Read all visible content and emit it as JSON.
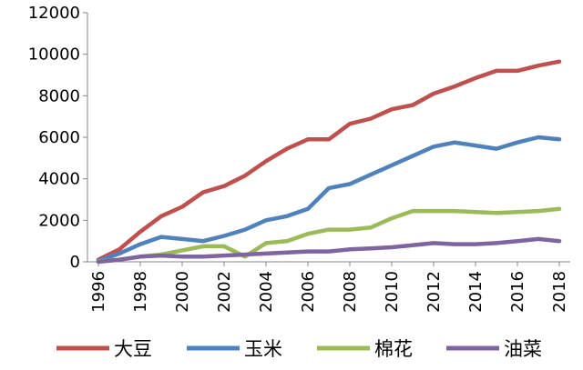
{
  "chart_data": {
    "type": "line",
    "title": "",
    "xlabel": "",
    "ylabel": "",
    "ylim": [
      0,
      12000
    ],
    "yticks": [
      0,
      2000,
      4000,
      6000,
      8000,
      10000,
      12000
    ],
    "xlim": [
      1996,
      2018
    ],
    "xticks": [
      1996,
      1998,
      2000,
      2002,
      2004,
      2006,
      2008,
      2010,
      2012,
      2014,
      2016,
      2018
    ],
    "grid": false,
    "legend_position": "bottom",
    "x": [
      1996,
      1997,
      1998,
      1999,
      2000,
      2001,
      2002,
      2003,
      2004,
      2005,
      2006,
      2007,
      2008,
      2009,
      2010,
      2011,
      2012,
      2013,
      2014,
      2015,
      2016,
      2017,
      2018
    ],
    "series": [
      {
        "name": "大豆",
        "color": "#c0504d",
        "values": [
          100,
          600,
          1450,
          2200,
          2650,
          3350,
          3650,
          4150,
          4850,
          5450,
          5900,
          5900,
          6650,
          6900,
          7350,
          7550,
          8100,
          8450,
          8850,
          9200,
          9200,
          9450,
          9650
        ]
      },
      {
        "name": "玉米",
        "color": "#4f81bd",
        "values": [
          50,
          400,
          850,
          1200,
          1100,
          1000,
          1250,
          1550,
          2000,
          2200,
          2550,
          3550,
          3750,
          4200,
          4650,
          5100,
          5550,
          5750,
          5600,
          5450,
          5750,
          6000,
          5900
        ]
      },
      {
        "name": "棉花",
        "color": "#9bbb59",
        "values": [
          20,
          100,
          250,
          350,
          550,
          750,
          750,
          250,
          900,
          1000,
          1350,
          1550,
          1550,
          1650,
          2100,
          2450,
          2450,
          2450,
          2400,
          2350,
          2400,
          2450,
          2550
        ]
      },
      {
        "name": "油菜",
        "color": "#8064a2",
        "values": [
          0,
          100,
          250,
          300,
          250,
          250,
          300,
          350,
          400,
          450,
          500,
          500,
          600,
          650,
          700,
          800,
          900,
          850,
          850,
          900,
          1000,
          1100,
          1000
        ]
      }
    ]
  }
}
